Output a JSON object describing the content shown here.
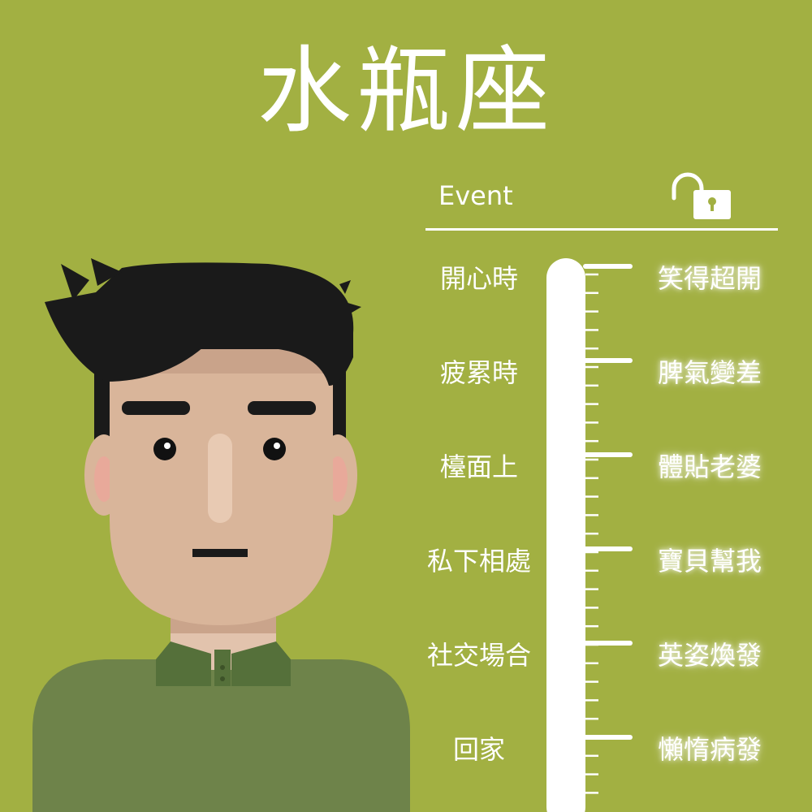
{
  "title": "水瓶座",
  "header": {
    "event_label": "Event",
    "lock_icon": "unlocked-padlock-icon"
  },
  "rows": [
    {
      "event": "開心時",
      "reaction": "笑得超開"
    },
    {
      "event": "疲累時",
      "reaction": "脾氣變差"
    },
    {
      "event": "檯面上",
      "reaction": "體貼老婆"
    },
    {
      "event": "私下相處",
      "reaction": "寶貝幫我"
    },
    {
      "event": "社交場合",
      "reaction": "英姿煥發"
    },
    {
      "event": "回家",
      "reaction": "懶惰病發"
    }
  ],
  "colors": {
    "background": "#a2b042",
    "text": "#ffffff",
    "hair": "#1a1a1a",
    "skin": "#d9b59a",
    "shirt": "#6e834a",
    "collar": "#55703a"
  }
}
